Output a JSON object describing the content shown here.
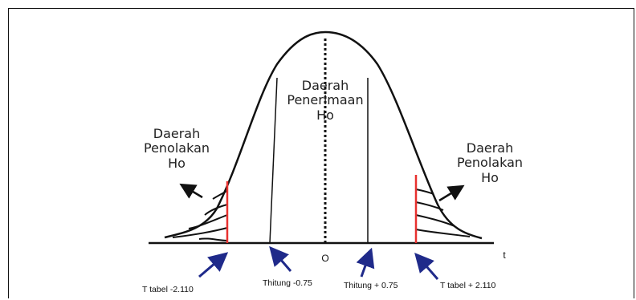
{
  "regions": {
    "left_rejection": [
      "Daerah",
      "Penolakan",
      "Ho"
    ],
    "acceptance": [
      "Daerah",
      "Penerimaan",
      "Ho"
    ],
    "right_rejection": [
      "Daerah",
      "Penolakan",
      "Ho"
    ]
  },
  "axis": {
    "origin": "O",
    "variable": "t"
  },
  "markers": {
    "t_tabel_left": "T tabel -2.110",
    "t_hitung_left": "Thitung -0.75",
    "t_hitung_right": "Thitung + 0.75",
    "t_tabel_right": "T tabel + 2.110"
  },
  "colors": {
    "critical_line": "#e8312f",
    "arrow": "#1f2a8a",
    "curve": "#111111"
  }
}
